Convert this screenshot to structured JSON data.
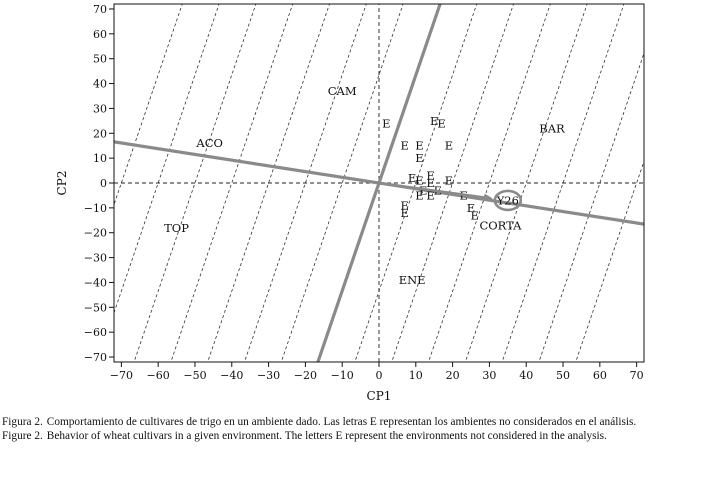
{
  "chart_data": {
    "type": "scatter",
    "xlabel": "CP1",
    "ylabel": "CP2",
    "xlim": [
      -72,
      72
    ],
    "ylim": [
      -72,
      72
    ],
    "xticks": [
      -70,
      -60,
      -50,
      -40,
      -30,
      -20,
      -10,
      0,
      10,
      20,
      30,
      40,
      50,
      60,
      70
    ],
    "yticks": [
      70,
      60,
      50,
      40,
      30,
      20,
      10,
      0,
      -10,
      -20,
      -30,
      -40,
      -50,
      -60,
      -70
    ],
    "grid": false,
    "cultivars": [
      {
        "label": "CAM",
        "x": -10,
        "y": 37
      },
      {
        "label": "ACO",
        "x": -46,
        "y": 16
      },
      {
        "label": "BAR",
        "x": 47,
        "y": 22
      },
      {
        "label": "TOP",
        "x": -55,
        "y": -18
      },
      {
        "label": "CORTA",
        "x": 33,
        "y": -17
      },
      {
        "label": "ENE",
        "x": 9,
        "y": -39
      },
      {
        "label": "Y26",
        "x": 35,
        "y": -7
      }
    ],
    "environments": [
      {
        "label": "E",
        "x": 2,
        "y": 24
      },
      {
        "label": "E",
        "x": 15,
        "y": 25
      },
      {
        "label": "E",
        "x": 17,
        "y": 24
      },
      {
        "label": "E",
        "x": 7,
        "y": 15
      },
      {
        "label": "E",
        "x": 11,
        "y": 15
      },
      {
        "label": "E",
        "x": 19,
        "y": 15
      },
      {
        "label": "E",
        "x": 11,
        "y": 10
      },
      {
        "label": "E",
        "x": 9,
        "y": 2
      },
      {
        "label": "E",
        "x": 11,
        "y": 1
      },
      {
        "label": "E",
        "x": 14,
        "y": 3
      },
      {
        "label": "E",
        "x": 14,
        "y": 0
      },
      {
        "label": "E",
        "x": 19,
        "y": 1
      },
      {
        "label": "E",
        "x": 12,
        "y": -3
      },
      {
        "label": "E",
        "x": 16,
        "y": -3
      },
      {
        "label": "E",
        "x": 11,
        "y": -5
      },
      {
        "label": "E",
        "x": 14,
        "y": -5
      },
      {
        "label": "E",
        "x": 23,
        "y": -5
      },
      {
        "label": "E",
        "x": 7,
        "y": -9
      },
      {
        "label": "E",
        "x": 7,
        "y": -12
      },
      {
        "label": "E",
        "x": 25,
        "y": -10
      },
      {
        "label": "E",
        "x": 26,
        "y": -13
      }
    ],
    "axis_lines": [
      {
        "from": [
          -72,
          16.56
        ],
        "to": [
          72,
          -16.56
        ]
      },
      {
        "from": [
          -16.6,
          -72
        ],
        "to": [
          16.6,
          72
        ]
      }
    ],
    "highlight": {
      "x": 35,
      "y": -7
    },
    "parallel_line_intercepts": [
      -70,
      -60,
      -50,
      -40,
      -30,
      -20,
      -10,
      10,
      20,
      30,
      40,
      50,
      60,
      70
    ],
    "parallel_slope": 4.35
  },
  "caption": {
    "es_num": "Figura 2.",
    "es_text": "Comportamiento de cultivares de trigo en un ambiente dado. Las letras E representan los ambientes no considerados en el análisis.",
    "en_num": "Figure 2.",
    "en_text": "Behavior of wheat cultivars in a given environment. The letters E represent the environments not considered in the analysis."
  },
  "colors": {
    "axis_line": "#8a8a8a",
    "frame": "#111111"
  }
}
